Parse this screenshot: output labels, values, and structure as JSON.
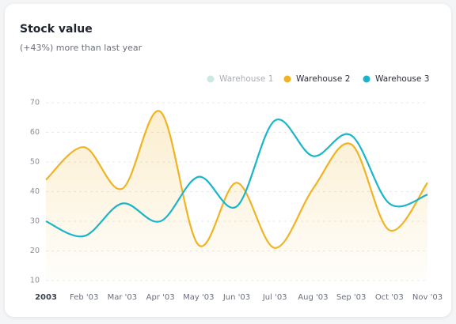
{
  "chart_data": {
    "type": "line",
    "title": "Stock value",
    "subtitle": "(+43%) more than last year",
    "categories": [
      "2003",
      "Feb '03",
      "Mar '03",
      "Apr '03",
      "May '03",
      "Jun '03",
      "Jul '03",
      "Aug '03",
      "Sep '03",
      "Oct '03",
      "Nov '03"
    ],
    "series": [
      {
        "name": "Warehouse 1",
        "color": "#cde7e2",
        "hidden": true,
        "values": [
          null,
          null,
          null,
          null,
          null,
          null,
          null,
          null,
          null,
          null,
          null
        ]
      },
      {
        "name": "Warehouse 2",
        "color": "#f0b323",
        "area": true,
        "values": [
          44,
          55,
          41,
          67,
          22,
          43,
          21,
          41,
          56,
          27,
          43
        ]
      },
      {
        "name": "Warehouse 3",
        "color": "#1ab5c9",
        "values": [
          30,
          25,
          36,
          30,
          45,
          35,
          64,
          52,
          59,
          36,
          39
        ]
      }
    ],
    "ylim": [
      10,
      70
    ],
    "yticks": [
      10,
      20,
      30,
      40,
      50,
      60,
      70
    ],
    "grid": true,
    "legend": "top-right"
  }
}
